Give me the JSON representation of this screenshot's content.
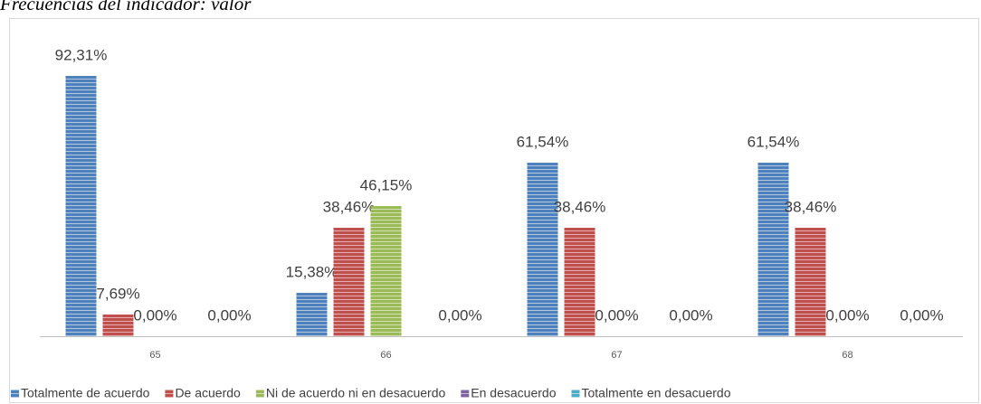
{
  "chart_data": {
    "type": "bar",
    "title": "Frecuencias del indicador: valor",
    "categories": [
      "65",
      "66",
      "67",
      "68"
    ],
    "ylim": [
      0,
      100
    ],
    "series": [
      {
        "name": "Totalmente de acuerdo",
        "color": "#4f81bd",
        "values": [
          92.31,
          15.38,
          61.54,
          61.54
        ],
        "value_labels": [
          "92,31%",
          "15,38%",
          "61,54%",
          "61,54%"
        ]
      },
      {
        "name": "De acuerdo",
        "color": "#c0504d",
        "values": [
          7.69,
          38.46,
          38.46,
          38.46
        ],
        "value_labels": [
          "7,69%",
          "38,46%",
          "38,46%",
          "38,46%"
        ]
      },
      {
        "name": "Ni de acuerdo ni en desacuerdo",
        "color": "#9bbb59",
        "values": [
          0,
          46.15,
          0,
          0
        ],
        "value_labels": [
          "0,00%",
          "46,15%",
          "0,00%",
          "0,00%"
        ]
      },
      {
        "name": "En desacuerdo",
        "color": "#8064a2",
        "values": [
          null,
          null,
          null,
          null
        ],
        "value_labels": [
          null,
          null,
          null,
          null
        ]
      },
      {
        "name": "Totalmente en desacuerdo",
        "color": "#4bacc6",
        "values": [
          0,
          0,
          0,
          0
        ],
        "value_labels": [
          "0,00%",
          "0,00%",
          "0,00%",
          "0,00%"
        ]
      }
    ]
  }
}
